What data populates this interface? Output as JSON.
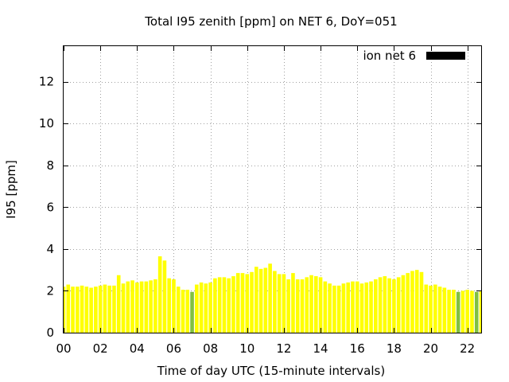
{
  "chart_data": {
    "type": "bar",
    "title": "Total I95 zenith [ppm] on NET 6, DoY=051",
    "xlabel": "Time of day UTC (15-minute intervals)",
    "ylabel": "I95 [ppm]",
    "xlim": [
      0,
      22.75
    ],
    "ylim": [
      0,
      13.7
    ],
    "x_ticks": [
      "00",
      "02",
      "04",
      "06",
      "08",
      "10",
      "12",
      "14",
      "16",
      "18",
      "20",
      "22"
    ],
    "y_ticks": [
      "0",
      "2",
      "4",
      "6",
      "8",
      "10",
      "12"
    ],
    "grid": true,
    "legend": {
      "label": "ion net 6",
      "position": "top-right",
      "color": "#000000"
    },
    "bar_width_hours": 0.2,
    "bar_color": "#ffff00",
    "highlight_color": "#80c040",
    "highlight_indices": [
      28,
      86,
      90
    ],
    "series": [
      {
        "name": "ion net 6",
        "x": [
          0.0,
          0.25,
          0.5,
          0.75,
          1.0,
          1.25,
          1.5,
          1.75,
          2.0,
          2.25,
          2.5,
          2.75,
          3.0,
          3.25,
          3.5,
          3.75,
          4.0,
          4.25,
          4.5,
          4.75,
          5.0,
          5.25,
          5.5,
          5.75,
          6.0,
          6.25,
          6.5,
          6.75,
          7.0,
          7.25,
          7.5,
          7.75,
          8.0,
          8.25,
          8.5,
          8.75,
          9.0,
          9.25,
          9.5,
          9.75,
          10.0,
          10.25,
          10.5,
          10.75,
          11.0,
          11.25,
          11.5,
          11.75,
          12.0,
          12.25,
          12.5,
          12.75,
          13.0,
          13.25,
          13.5,
          13.75,
          14.0,
          14.25,
          14.5,
          14.75,
          15.0,
          15.25,
          15.5,
          15.75,
          16.0,
          16.25,
          16.5,
          16.75,
          17.0,
          17.25,
          17.5,
          17.75,
          18.0,
          18.25,
          18.5,
          18.75,
          19.0,
          19.25,
          19.5,
          19.75,
          20.0,
          20.25,
          20.5,
          20.75,
          21.0,
          21.25,
          21.5,
          21.75,
          22.0,
          22.25,
          22.5,
          22.75
        ],
        "values": [
          2.2,
          2.3,
          2.2,
          2.2,
          2.25,
          2.2,
          2.15,
          2.2,
          2.25,
          2.3,
          2.25,
          2.25,
          2.75,
          2.35,
          2.45,
          2.5,
          2.4,
          2.45,
          2.45,
          2.5,
          2.55,
          3.65,
          3.45,
          2.6,
          2.55,
          2.2,
          2.05,
          2.05,
          1.95,
          2.3,
          2.4,
          2.35,
          2.4,
          2.6,
          2.65,
          2.65,
          2.6,
          2.7,
          2.85,
          2.85,
          2.8,
          2.9,
          3.15,
          3.05,
          3.1,
          3.3,
          2.95,
          2.8,
          2.8,
          2.55,
          2.85,
          2.55,
          2.55,
          2.65,
          2.75,
          2.7,
          2.65,
          2.45,
          2.35,
          2.25,
          2.25,
          2.35,
          2.4,
          2.45,
          2.45,
          2.35,
          2.4,
          2.45,
          2.55,
          2.65,
          2.7,
          2.6,
          2.55,
          2.65,
          2.75,
          2.85,
          2.95,
          3.0,
          2.9,
          2.3,
          2.25,
          2.3,
          2.2,
          2.15,
          2.05,
          2.05,
          1.95,
          2.0,
          2.05,
          2.0,
          1.95,
          2.0
        ]
      }
    ]
  }
}
